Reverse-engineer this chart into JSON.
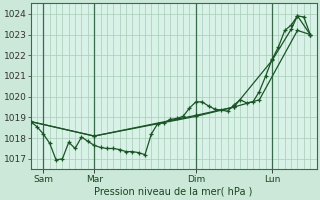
{
  "background_color": "#cce8d8",
  "plot_bg": "#d8f2e8",
  "grid_color": "#aaccb8",
  "line_color": "#1a5525",
  "marker_color": "#1a5525",
  "title": "Pression niveau de la mer( hPa )",
  "ylim": [
    1016.5,
    1024.5
  ],
  "yticks": [
    1017,
    1018,
    1019,
    1020,
    1021,
    1022,
    1023,
    1024
  ],
  "xtick_labels": [
    "Sam",
    "Mar",
    "Dim",
    "Lun"
  ],
  "xtick_positions": [
    12,
    60,
    156,
    228
  ],
  "vline_positions": [
    12,
    60,
    156,
    228
  ],
  "xlim": [
    0,
    270
  ],
  "series1_x": [
    0,
    6,
    12,
    18,
    24,
    30,
    36,
    42,
    48,
    54,
    60,
    66,
    72,
    78,
    84,
    90,
    96,
    102,
    108,
    114,
    120,
    126,
    132,
    138,
    144,
    150,
    156,
    162,
    168,
    174,
    180,
    186,
    192,
    198,
    204,
    210,
    216,
    222,
    228,
    234,
    240,
    246,
    252,
    258,
    264
  ],
  "series1_y": [
    1018.8,
    1018.55,
    1018.2,
    1017.75,
    1016.95,
    1017.0,
    1017.8,
    1017.5,
    1018.05,
    1017.85,
    1017.65,
    1017.55,
    1017.5,
    1017.5,
    1017.45,
    1017.35,
    1017.35,
    1017.3,
    1017.2,
    1018.2,
    1018.7,
    1018.75,
    1018.9,
    1018.95,
    1019.05,
    1019.45,
    1019.75,
    1019.75,
    1019.55,
    1019.4,
    1019.35,
    1019.3,
    1019.6,
    1019.85,
    1019.7,
    1019.75,
    1020.25,
    1021.0,
    1021.8,
    1022.4,
    1023.2,
    1023.45,
    1023.9,
    1023.85,
    1023.0
  ],
  "series2_x": [
    0,
    60,
    156,
    192,
    228,
    246,
    252,
    264
  ],
  "series2_y": [
    1018.8,
    1018.1,
    1019.05,
    1019.5,
    1021.75,
    1023.25,
    1023.9,
    1023.0
  ],
  "series3_x": [
    0,
    60,
    156,
    192,
    216,
    252,
    264
  ],
  "series3_y": [
    1018.8,
    1018.1,
    1019.1,
    1019.5,
    1019.85,
    1023.2,
    1023.0
  ]
}
